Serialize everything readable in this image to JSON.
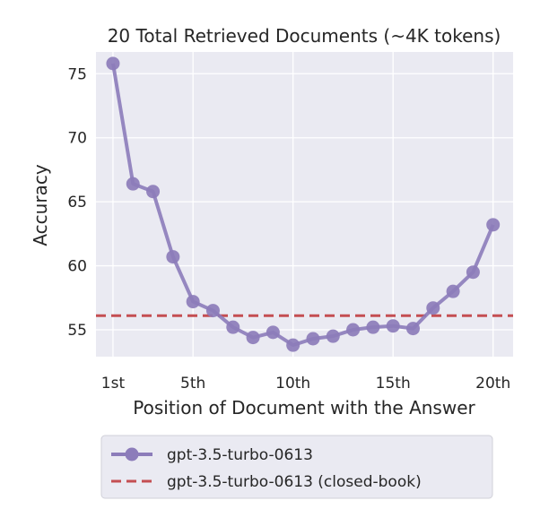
{
  "chart_data": {
    "type": "line",
    "title": "20 Total Retrieved Documents (~4K tokens)",
    "xlabel": "Position of Document with the Answer",
    "ylabel": "Accuracy",
    "x": [
      1,
      2,
      3,
      4,
      5,
      6,
      7,
      8,
      9,
      10,
      11,
      12,
      13,
      14,
      15,
      16,
      17,
      18,
      19,
      20
    ],
    "xticks": [
      {
        "value": 1,
        "label": "1st"
      },
      {
        "value": 5,
        "label": "5th"
      },
      {
        "value": 10,
        "label": "10th"
      },
      {
        "value": 15,
        "label": "15th"
      },
      {
        "value": 20,
        "label": "20th"
      }
    ],
    "yticks": [
      55,
      60,
      65,
      70,
      75
    ],
    "xlim": [
      0.15,
      21.0
    ],
    "ylim": [
      52.9,
      76.7
    ],
    "grid": true,
    "legend_position": "below",
    "series": [
      {
        "name": "gpt-3.5-turbo-0613",
        "style": "solid-marker",
        "color": "#8c7cba",
        "values": [
          75.8,
          66.4,
          65.8,
          60.7,
          57.2,
          56.5,
          55.2,
          54.4,
          54.8,
          53.8,
          54.3,
          54.5,
          55.0,
          55.2,
          55.3,
          55.1,
          56.7,
          58.0,
          59.5,
          63.2
        ]
      },
      {
        "name": "gpt-3.5-turbo-0613 (closed-book)",
        "style": "dashed",
        "color": "#c44e52",
        "value": 56.1
      }
    ],
    "plot_background": "#eaeaf2",
    "grid_color": "#ffffff"
  }
}
